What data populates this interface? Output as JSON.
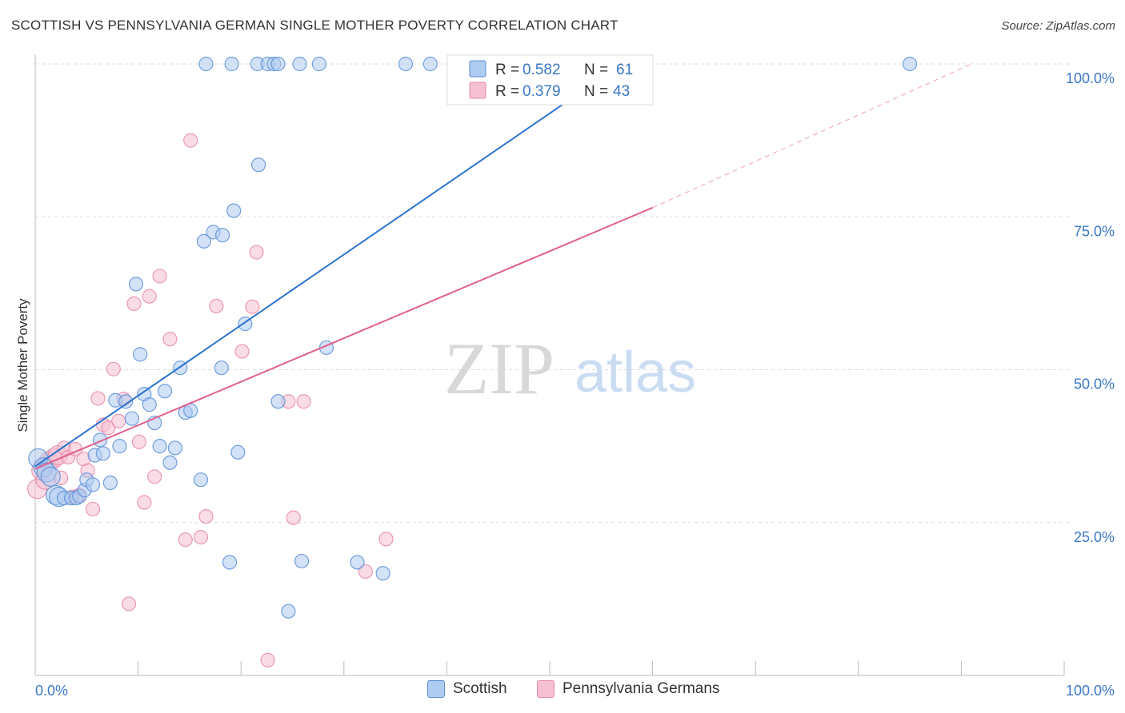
{
  "header": {
    "title": "SCOTTISH VS PENNSYLVANIA GERMAN SINGLE MOTHER POVERTY CORRELATION CHART",
    "source": "Source: ZipAtlas.com"
  },
  "watermark": {
    "zip": "ZIP",
    "atlas": "atlas"
  },
  "colors": {
    "blue": "#5b8fd6",
    "blue_fill": "#aecbf0",
    "blue_line": "#2b73d0",
    "pink": "#e78aa8",
    "pink_fill": "#f5c0d2",
    "pink_line": "#e0608d",
    "axis_text": "#3a78c9"
  },
  "legend": {
    "rows": [
      {
        "r_label": "R =",
        "r_value": "0.582",
        "n_label": "N =",
        "n_value": "61"
      },
      {
        "r_label": "R =",
        "r_value": "0.379",
        "n_label": "N =",
        "n_value": "43"
      }
    ]
  },
  "chart_data": {
    "type": "scatter",
    "title": "SCOTTISH VS PENNSYLVANIA GERMAN SINGLE MOTHER POVERTY CORRELATION CHART",
    "xlabel": "",
    "ylabel": "Single Mother Poverty",
    "xlim": [
      0,
      100
    ],
    "ylim": [
      0,
      102
    ],
    "x_tick_labels": [
      "0.0%",
      "100.0%"
    ],
    "y_ticks": [
      25,
      50,
      75,
      100
    ],
    "y_tick_labels": [
      "25.0%",
      "50.0%",
      "75.0%",
      "100.0%"
    ],
    "grid": true,
    "legend_position": "top-center",
    "series": [
      {
        "name": "Scottish",
        "color": "#5b8fd6",
        "r": 0.582,
        "n": 61,
        "trend": {
          "x0": 0,
          "y0": 34.2,
          "x1": 57,
          "y1": 100
        },
        "points": [
          [
            0.3,
            35.5
          ],
          [
            0.8,
            34.0
          ],
          [
            1.1,
            33.2
          ],
          [
            1.5,
            32.5
          ],
          [
            2.0,
            29.5
          ],
          [
            2.3,
            29.2
          ],
          [
            2.8,
            29.0
          ],
          [
            3.5,
            29.0
          ],
          [
            4.0,
            29.0
          ],
          [
            4.3,
            29.3
          ],
          [
            4.8,
            30.3
          ],
          [
            5.0,
            32.0
          ],
          [
            5.6,
            31.2
          ],
          [
            5.8,
            36.0
          ],
          [
            6.3,
            38.5
          ],
          [
            6.6,
            36.3
          ],
          [
            7.3,
            31.5
          ],
          [
            7.8,
            45.0
          ],
          [
            8.2,
            37.5
          ],
          [
            8.8,
            44.8
          ],
          [
            9.4,
            42.0
          ],
          [
            9.8,
            64.0
          ],
          [
            10.2,
            52.5
          ],
          [
            10.6,
            46.0
          ],
          [
            11.1,
            44.3
          ],
          [
            11.6,
            41.3
          ],
          [
            12.1,
            37.5
          ],
          [
            12.6,
            46.5
          ],
          [
            13.1,
            34.8
          ],
          [
            13.6,
            37.2
          ],
          [
            14.1,
            50.3
          ],
          [
            14.6,
            43.0
          ],
          [
            15.1,
            43.3
          ],
          [
            16.1,
            32.0
          ],
          [
            16.4,
            71.0
          ],
          [
            17.3,
            72.5
          ],
          [
            18.2,
            72.0
          ],
          [
            18.1,
            50.3
          ],
          [
            18.9,
            18.5
          ],
          [
            19.3,
            76.0
          ],
          [
            19.7,
            36.5
          ],
          [
            20.4,
            57.5
          ],
          [
            21.7,
            83.5
          ],
          [
            23.6,
            44.8
          ],
          [
            24.6,
            10.5
          ],
          [
            25.9,
            18.7
          ],
          [
            28.3,
            53.6
          ],
          [
            31.3,
            18.5
          ],
          [
            33.8,
            16.7
          ],
          [
            16.6,
            100
          ],
          [
            19.1,
            100
          ],
          [
            21.6,
            100
          ],
          [
            22.6,
            100
          ],
          [
            23.2,
            100
          ],
          [
            23.6,
            100
          ],
          [
            25.7,
            100
          ],
          [
            27.6,
            100
          ],
          [
            36.0,
            100
          ],
          [
            38.4,
            100
          ],
          [
            41.0,
            100
          ],
          [
            85.0,
            100
          ]
        ]
      },
      {
        "name": "Pennsylvania Germans",
        "color": "#e78aa8",
        "r": 0.379,
        "n": 43,
        "trend": {
          "x0": 0,
          "y0": 33.8,
          "x1": 60,
          "y1": 76.5,
          "x_dash_end": 91,
          "y_dash_end": 100
        },
        "points": [
          [
            0.2,
            30.5
          ],
          [
            0.6,
            33.5
          ],
          [
            1.0,
            32.0
          ],
          [
            1.3,
            35.0
          ],
          [
            1.8,
            35.5
          ],
          [
            2.2,
            36.0
          ],
          [
            2.5,
            32.3
          ],
          [
            2.8,
            37.2
          ],
          [
            3.2,
            35.7
          ],
          [
            3.6,
            29.2
          ],
          [
            3.9,
            37.0
          ],
          [
            4.3,
            29.5
          ],
          [
            4.7,
            35.4
          ],
          [
            5.1,
            33.5
          ],
          [
            5.6,
            27.2
          ],
          [
            6.1,
            45.3
          ],
          [
            6.6,
            41.0
          ],
          [
            7.1,
            40.5
          ],
          [
            7.6,
            50.1
          ],
          [
            8.1,
            41.6
          ],
          [
            8.6,
            45.2
          ],
          [
            9.1,
            11.7
          ],
          [
            9.6,
            60.8
          ],
          [
            10.1,
            38.2
          ],
          [
            10.6,
            28.3
          ],
          [
            11.1,
            62.0
          ],
          [
            11.6,
            32.5
          ],
          [
            12.1,
            65.3
          ],
          [
            13.1,
            55.0
          ],
          [
            14.6,
            22.2
          ],
          [
            15.1,
            87.5
          ],
          [
            16.1,
            22.6
          ],
          [
            16.6,
            26.0
          ],
          [
            17.6,
            60.4
          ],
          [
            20.1,
            53.0
          ],
          [
            21.1,
            60.3
          ],
          [
            21.5,
            69.2
          ],
          [
            22.6,
            2.5
          ],
          [
            24.6,
            44.8
          ],
          [
            25.1,
            25.8
          ],
          [
            26.1,
            44.8
          ],
          [
            32.1,
            17.0
          ],
          [
            34.1,
            22.3
          ]
        ]
      }
    ]
  }
}
